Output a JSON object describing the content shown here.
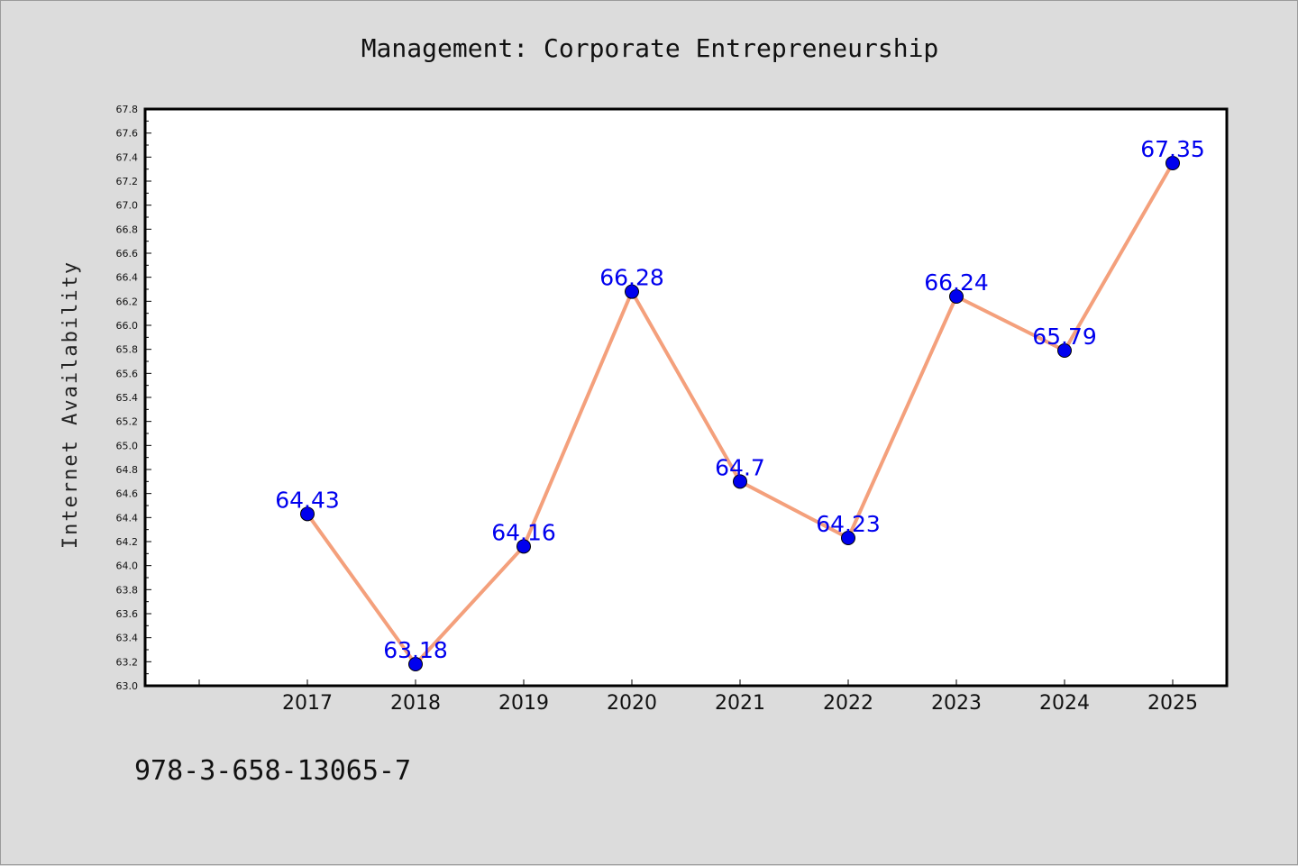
{
  "footer_text": "978-3-658-13065-7",
  "colors": {
    "background": "#dcdcdc",
    "plot_background": "#ffffff",
    "line": "#f4a07c",
    "marker": "#0000ee",
    "data_label": "#0000ee"
  },
  "chart_data": {
    "type": "line",
    "title": "Management: Corporate Entrepreneurship",
    "xlabel": "",
    "ylabel": "Internet Availability",
    "categories": [
      "2017",
      "2018",
      "2019",
      "2020",
      "2021",
      "2022",
      "2023",
      "2024",
      "2025"
    ],
    "series": [
      {
        "values": [
          64.43,
          63.18,
          64.16,
          66.28,
          64.7,
          64.23,
          66.24,
          65.79,
          67.35
        ],
        "labels": [
          "64.43",
          "63.18",
          "64.16",
          "66.28",
          "64.7",
          "64.23",
          "66.24",
          "65.79",
          "67.35"
        ]
      }
    ],
    "ylim": [
      63.0,
      67.8
    ],
    "yticks": [
      "63.0",
      "63.2",
      "63.4",
      "63.6",
      "63.8",
      "64.0",
      "64.2",
      "64.4",
      "64.6",
      "64.8",
      "65.0",
      "65.2",
      "65.4",
      "65.6",
      "65.8",
      "66.0",
      "66.2",
      "66.4",
      "66.6",
      "66.8",
      "67.0",
      "67.2",
      "67.4",
      "67.6",
      "67.8"
    ],
    "grid": false,
    "legend": "none"
  }
}
